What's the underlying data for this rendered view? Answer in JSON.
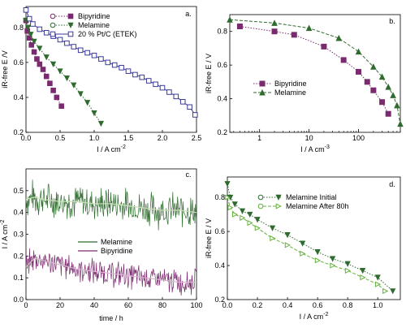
{
  "figure": {
    "panel_labels": [
      "a.",
      "b.",
      "c.",
      "d."
    ],
    "colors": {
      "purple": "#7a2a6e",
      "green": "#2f6b2f",
      "blue": "#3b3b9a",
      "lightgreen": "#63b33b"
    }
  },
  "chart_data": [
    {
      "panel": "a.",
      "type": "line",
      "xlabel": "I / A cm",
      "xlabel_sup": "-2",
      "ylabel": "iR-free E /V",
      "xlim": [
        0,
        2.5
      ],
      "ylim": [
        0.2,
        0.92
      ],
      "xticks": [
        "0.0",
        "0.5",
        "1.0",
        "1.5",
        "2.0",
        "2.5"
      ],
      "yticks": [
        "0.2",
        "0.4",
        "0.6",
        "0.8"
      ],
      "legend_position": "top-left",
      "series": [
        {
          "name": "Bipyridine",
          "color": "#7a2a6e",
          "style": "dotted",
          "marker": "square",
          "x": [
            0.0,
            0.02,
            0.05,
            0.08,
            0.12,
            0.16,
            0.2,
            0.25,
            0.3,
            0.35,
            0.4,
            0.45,
            0.52
          ],
          "y": [
            0.84,
            0.78,
            0.74,
            0.7,
            0.66,
            0.62,
            0.59,
            0.56,
            0.52,
            0.48,
            0.44,
            0.4,
            0.35
          ]
        },
        {
          "name": "Melamine",
          "color": "#2f6b2f",
          "style": "dotted",
          "marker": "triangle-down",
          "x": [
            0.0,
            0.03,
            0.07,
            0.12,
            0.2,
            0.3,
            0.4,
            0.5,
            0.6,
            0.7,
            0.8,
            0.9,
            1.0,
            1.1
          ],
          "y": [
            0.84,
            0.8,
            0.76,
            0.72,
            0.68,
            0.63,
            0.59,
            0.55,
            0.51,
            0.47,
            0.42,
            0.37,
            0.31,
            0.25
          ]
        },
        {
          "name": "20 % Pt/C (ETEK)",
          "color": "#3b3b9a",
          "style": "solid",
          "marker": "square-open",
          "x": [
            0.0,
            0.05,
            0.1,
            0.2,
            0.3,
            0.4,
            0.5,
            0.6,
            0.7,
            0.8,
            0.9,
            1.0,
            1.1,
            1.2,
            1.3,
            1.4,
            1.5,
            1.6,
            1.7,
            1.8,
            1.9,
            2.0,
            2.1,
            2.2,
            2.3,
            2.4,
            2.48
          ],
          "y": [
            0.9,
            0.85,
            0.82,
            0.79,
            0.77,
            0.75,
            0.73,
            0.71,
            0.69,
            0.67,
            0.655,
            0.64,
            0.62,
            0.6,
            0.585,
            0.57,
            0.55,
            0.53,
            0.515,
            0.495,
            0.475,
            0.455,
            0.43,
            0.405,
            0.375,
            0.345,
            0.3
          ]
        }
      ]
    },
    {
      "panel": "b.",
      "type": "line",
      "xscale": "log",
      "xlabel": "I / A cm",
      "xlabel_sup": "-3",
      "ylabel": "iR-free E / V",
      "xlim": [
        0.25,
        700
      ],
      "ylim": [
        0.2,
        0.9
      ],
      "xticks": [
        "1",
        "10",
        "100"
      ],
      "yticks": [
        "0.2",
        "0.4",
        "0.6",
        "0.8"
      ],
      "legend_position": "bottom-left",
      "series": [
        {
          "name": "Bipyridine",
          "color": "#7a2a6e",
          "style": "dotted",
          "marker": "square",
          "x": [
            0.4,
            2,
            5,
            20,
            50,
            100,
            150,
            200,
            300,
            400
          ],
          "y": [
            0.83,
            0.8,
            0.78,
            0.71,
            0.63,
            0.56,
            0.5,
            0.45,
            0.38,
            0.31
          ]
        },
        {
          "name": "Melamine",
          "color": "#2f6b2f",
          "style": "dashed",
          "marker": "triangle-up",
          "x": [
            0.25,
            2,
            10,
            40,
            100,
            200,
            300,
            400,
            500,
            600,
            700
          ],
          "y": [
            0.87,
            0.85,
            0.82,
            0.76,
            0.68,
            0.59,
            0.53,
            0.47,
            0.42,
            0.36,
            0.25
          ]
        }
      ]
    },
    {
      "panel": "c.",
      "type": "line",
      "xlabel": "time / h",
      "ylabel": "I / A cm",
      "ylabel_sup": "-2",
      "xlim": [
        0,
        100
      ],
      "ylim": [
        0,
        0.6
      ],
      "xticks": [
        "0",
        "20",
        "40",
        "60",
        "80",
        "100"
      ],
      "yticks": [
        "0.0",
        "0.1",
        "0.2",
        "0.3",
        "0.4",
        "0.5"
      ],
      "legend_position": "center-left",
      "series": [
        {
          "name": "Melamine",
          "color": "#2f6b2f",
          "x": [
            0,
            5,
            10,
            20,
            30,
            40,
            50,
            60,
            70,
            80,
            90,
            100
          ],
          "y": [
            0.46,
            0.47,
            0.46,
            0.45,
            0.45,
            0.44,
            0.44,
            0.43,
            0.42,
            0.41,
            0.41,
            0.4
          ]
        },
        {
          "name": "Bipyridine",
          "color": "#7a2a6e",
          "x": [
            0,
            5,
            10,
            20,
            30,
            40,
            50,
            60,
            70,
            80,
            90,
            100
          ],
          "y": [
            0.15,
            0.19,
            0.18,
            0.16,
            0.14,
            0.13,
            0.12,
            0.11,
            0.1,
            0.09,
            0.08,
            0.08
          ]
        }
      ]
    },
    {
      "panel": "d.",
      "type": "line",
      "xlabel": "I / A cm",
      "xlabel_sup": "-2",
      "ylabel": "iR-free E / V",
      "xlim": [
        0,
        1.15
      ],
      "ylim": [
        0.2,
        0.92
      ],
      "xticks": [
        "0.0",
        "0.2",
        "0.4",
        "0.6",
        "0.8",
        "1.0"
      ],
      "yticks": [
        "0.2",
        "0.4",
        "0.6",
        "0.8"
      ],
      "legend_position": "top-right",
      "series": [
        {
          "name": "Melamine Initial",
          "color": "#2f6b2f",
          "style": "dotted",
          "marker": "triangle-down",
          "x": [
            0.0,
            0.02,
            0.05,
            0.1,
            0.15,
            0.2,
            0.3,
            0.4,
            0.5,
            0.6,
            0.7,
            0.8,
            0.9,
            1.0,
            1.1
          ],
          "y": [
            0.88,
            0.8,
            0.76,
            0.72,
            0.7,
            0.67,
            0.62,
            0.58,
            0.53,
            0.48,
            0.44,
            0.41,
            0.37,
            0.33,
            0.25
          ]
        },
        {
          "name": "Melamine After 80h",
          "color": "#63b33b",
          "style": "dashed",
          "marker": "triangle-right-open",
          "x": [
            0.0,
            0.02,
            0.05,
            0.1,
            0.15,
            0.2,
            0.3,
            0.4,
            0.5,
            0.6,
            0.7,
            0.8,
            0.9,
            1.0,
            1.05
          ],
          "y": [
            0.8,
            0.74,
            0.7,
            0.68,
            0.65,
            0.62,
            0.56,
            0.52,
            0.47,
            0.43,
            0.4,
            0.37,
            0.33,
            0.29,
            0.25
          ]
        }
      ]
    }
  ]
}
